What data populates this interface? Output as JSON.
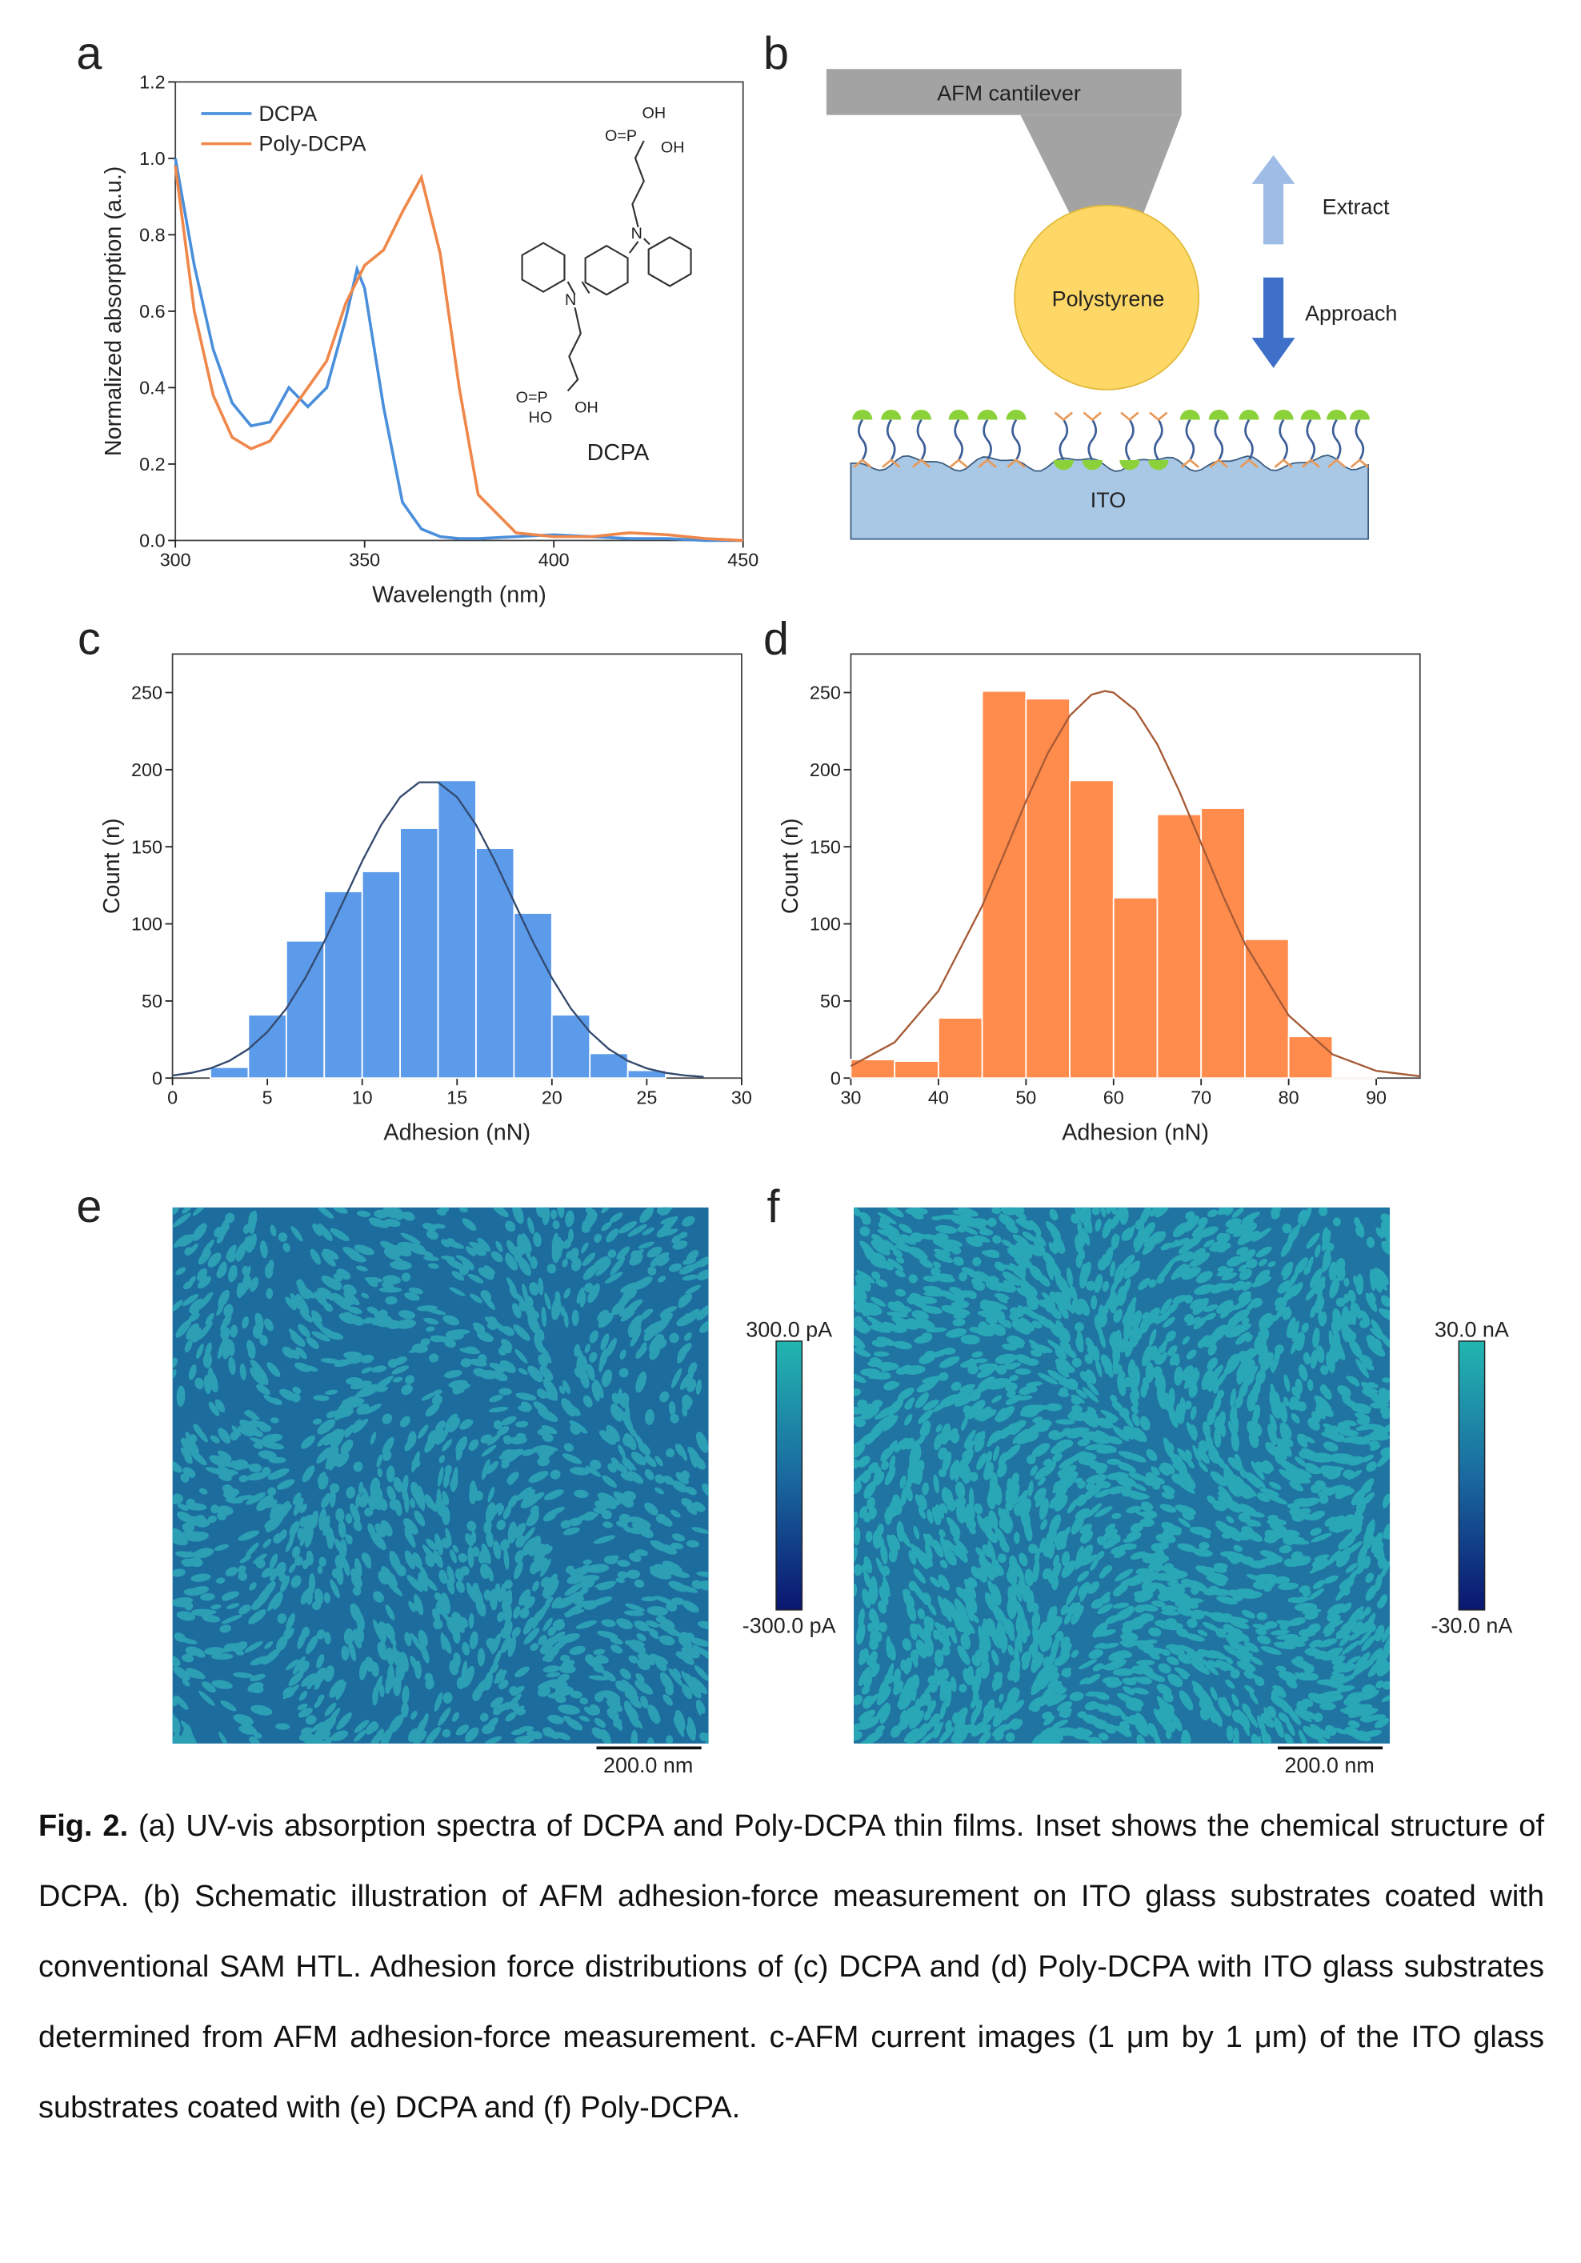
{
  "panel_labels": [
    "a",
    "b",
    "c",
    "d",
    "e",
    "f"
  ],
  "chart_data": [
    {
      "type": "line",
      "x_label": "Wavelength (nm)",
      "y_label": "Normalized absorption (a.u.)",
      "x": [
        300,
        305,
        310,
        315,
        320,
        325,
        330,
        335,
        340,
        345,
        348,
        350,
        355,
        360,
        365,
        370,
        375,
        380,
        390,
        400,
        410,
        420,
        430,
        440,
        450
      ],
      "series": [
        {
          "name": "DCPA",
          "color": "#4a8fdb",
          "values": [
            1.0,
            0.72,
            0.5,
            0.36,
            0.3,
            0.31,
            0.4,
            0.35,
            0.4,
            0.58,
            0.71,
            0.66,
            0.35,
            0.1,
            0.03,
            0.01,
            0.005,
            0.005,
            0.01,
            0.015,
            0.01,
            0.005,
            0.005,
            0,
            0
          ]
        },
        {
          "name": "Poly-DCPA",
          "color": "#f0874a",
          "values": [
            0.98,
            0.6,
            0.38,
            0.27,
            0.24,
            0.26,
            0.33,
            0.4,
            0.47,
            0.62,
            0.68,
            0.72,
            0.76,
            0.86,
            0.95,
            0.75,
            0.4,
            0.12,
            0.02,
            0.01,
            0.01,
            0.02,
            0.015,
            0.005,
            0
          ]
        }
      ],
      "xlim": [
        300,
        450
      ],
      "ylim": [
        0,
        1.2
      ],
      "xticks": [
        300,
        350,
        400,
        450
      ],
      "yticks": [
        {
          "value": 0,
          "label": "0.0"
        },
        0.2,
        0.4,
        0.6,
        0.8,
        {
          "value": 1,
          "label": "1.0"
        },
        1.2
      ],
      "legend": "upper left",
      "inset": {
        "label": "DCPA",
        "atoms": [
          "OH",
          "O=P",
          "OH",
          "N",
          "N",
          "O=P",
          "OH",
          "HO"
        ]
      }
    },
    {
      "type": "histogram",
      "x_label": "Adhesion (nN)",
      "y_label": "Count (n)",
      "bins": [
        2,
        4,
        6,
        8,
        10,
        12,
        14,
        16,
        18,
        20,
        22,
        24,
        26
      ],
      "values": [
        7,
        41,
        89,
        121,
        134,
        162,
        193,
        149,
        107,
        41,
        16,
        5
      ],
      "color": "#5b9bea",
      "fit": {
        "color": "#34496e",
        "x": [
          0,
          1,
          2,
          3,
          4,
          5,
          6,
          7,
          8,
          9,
          10,
          11,
          12,
          13,
          14,
          15,
          16,
          17,
          18,
          19,
          20,
          21,
          22,
          23,
          24,
          25,
          26,
          27,
          28
        ],
        "values": [
          1.7,
          3.4,
          6.3,
          11.2,
          18.8,
          29.9,
          45.1,
          64.9,
          88.4,
          114.4,
          140.7,
          164.2,
          182.2,
          191.8,
          191.8,
          182.2,
          164.2,
          140.7,
          114.4,
          88.4,
          64.9,
          45.1,
          29.9,
          18.8,
          11.2,
          6.3,
          3.4,
          1.7,
          0.8
        ]
      },
      "xlim": [
        0,
        30
      ],
      "ylim": [
        0,
        275
      ],
      "xticks": [
        0,
        5,
        10,
        15,
        20,
        25,
        30
      ],
      "yticks": [
        0,
        50,
        100,
        150,
        200,
        250
      ]
    },
    {
      "type": "histogram",
      "x_label": "Adhesion (nN)",
      "y_label": "Count (n)",
      "bins": [
        30,
        35,
        40,
        45,
        50,
        55,
        60,
        65,
        70,
        75,
        80,
        85,
        90
      ],
      "values": [
        12,
        11,
        39,
        251,
        246,
        193,
        117,
        171,
        175,
        90,
        27,
        1
      ],
      "color": "#ff8c4c",
      "fit": {
        "color": "#a65a36",
        "x": [
          30,
          35,
          40,
          45,
          47.5,
          50,
          52.5,
          55,
          57.5,
          59,
          60,
          62.5,
          65,
          67.5,
          70,
          72.5,
          75,
          80,
          85,
          90,
          95
        ],
        "values": [
          7.8,
          23.2,
          56.5,
          111.7,
          145.4,
          179.5,
          210.8,
          235,
          248.7,
          251,
          250,
          238.6,
          216.4,
          186.2,
          152.3,
          118.2,
          87.1,
          40.6,
          15.4,
          4.7,
          1.2
        ]
      },
      "xlim": [
        30,
        95
      ],
      "ylim": [
        0,
        275
      ],
      "xticks": [
        30,
        40,
        50,
        60,
        70,
        80,
        90
      ],
      "yticks": [
        0,
        50,
        100,
        150,
        200,
        250
      ]
    }
  ],
  "schematic": {
    "cantilever": "AFM cantilever",
    "sphere": "Polystyrene",
    "up_arrow": "Extract",
    "down_arrow": "Approach",
    "substrate": "ITO"
  },
  "afm_images": [
    {
      "max_label": "300.0 pA",
      "min_label": "-300.0 pA",
      "scale_bar": "200.0 nm"
    },
    {
      "max_label": "30.0 nA",
      "min_label": "-30.0 nA",
      "scale_bar": "200.0 nm"
    }
  ],
  "caption": {
    "label": "Fig. 2.",
    "text": "(a) UV-vis absorption spectra of DCPA and Poly-DCPA thin films. Inset shows the chemical structure of DCPA. (b) Schematic illustration of AFM adhesion-force measurement on ITO glass substrates coated with conventional SAM HTL. Adhesion force distributions of (c) DCPA and (d) Poly-DCPA with ITO glass substrates determined from AFM adhesion-force measurement. c-AFM current images (1 μm by 1 μm) of the ITO glass substrates coated with (e) DCPA and (f) Poly-DCPA."
  }
}
